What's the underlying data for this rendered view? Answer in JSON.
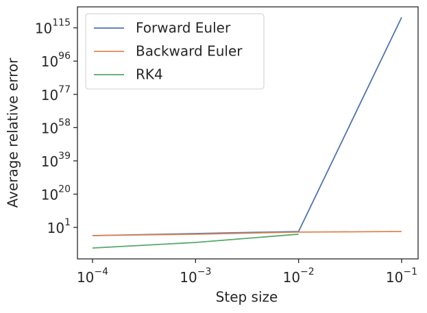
{
  "chart_data": {
    "type": "line",
    "xlabel": "Step size",
    "ylabel": "Average relative error",
    "x": [
      0.0001,
      0.001,
      0.01,
      0.1
    ],
    "series": [
      {
        "name": "Forward Euler",
        "color": "#4c72b0",
        "values": [
          0.0002,
          0.003,
          0.045,
          1e+121
        ]
      },
      {
        "name": "Backward Euler",
        "color": "#dd8452",
        "values": [
          0.0002,
          0.0013,
          0.02,
          0.045
        ]
      },
      {
        "name": "RK4",
        "color": "#55a868",
        "values": [
          1.6e-11,
          2.5e-08,
          0.0013,
          null
        ]
      }
    ],
    "xscale": "log",
    "yscale": "log",
    "xlim": [
      7.14e-05,
      0.1445
    ],
    "ylim": [
      1e-17,
      1e+127
    ],
    "xticks": [
      {
        "value": 0.0001,
        "label": "10^−4"
      },
      {
        "value": 0.001,
        "label": "10^−3"
      },
      {
        "value": 0.01,
        "label": "10^−2"
      },
      {
        "value": 0.1,
        "label": "10^−1"
      }
    ],
    "yticks": [
      {
        "value": 10,
        "label": "10^1"
      },
      {
        "value": 1e+20,
        "label": "10^20"
      },
      {
        "value": 1e+39,
        "label": "10^39"
      },
      {
        "value": 1e+58,
        "label": "10^58"
      },
      {
        "value": 1e+77,
        "label": "10^77"
      },
      {
        "value": 1e+96,
        "label": "10^96"
      },
      {
        "value": 1e+115,
        "label": "10^115"
      }
    ],
    "legend": "upper left",
    "grid": false
  }
}
